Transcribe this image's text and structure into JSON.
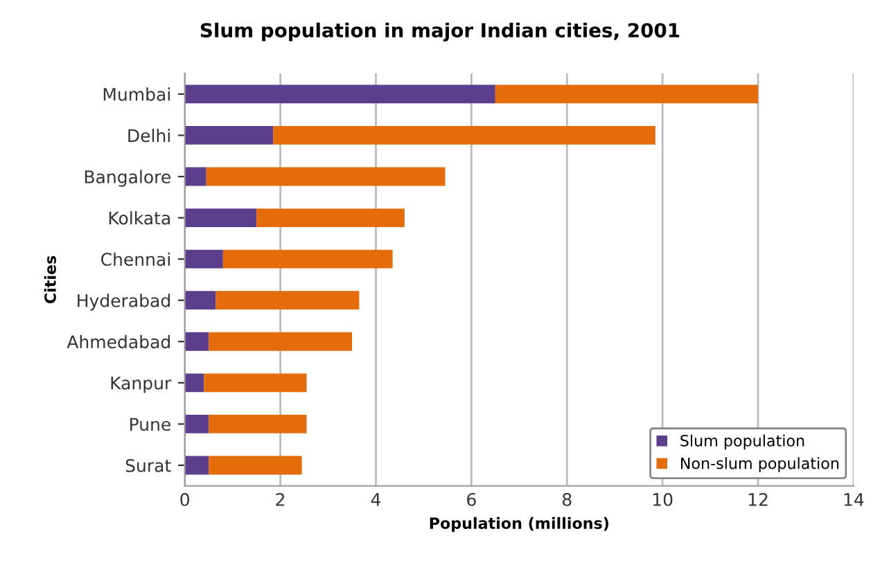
{
  "chart_data": {
    "type": "bar",
    "orientation": "horizontal",
    "stacked": true,
    "title": "Slum population in major Indian cities, 2001",
    "xlabel": "Population (millions)",
    "ylabel": "Cities",
    "categories": [
      "Mumbai",
      "Delhi",
      "Bangalore",
      "Kolkata",
      "Chennai",
      "Hyderabad",
      "Ahmedabad",
      "Kanpur",
      "Pune",
      "Surat"
    ],
    "series": [
      {
        "name": "Slum population",
        "color": "#5b3f8c",
        "values": [
          6.5,
          1.85,
          0.45,
          1.5,
          0.8,
          0.65,
          0.5,
          0.4,
          0.5,
          0.5
        ]
      },
      {
        "name": "Non-slum population",
        "color": "#e46c0a",
        "values": [
          5.5,
          8.0,
          5.0,
          3.1,
          3.55,
          3.0,
          3.0,
          2.15,
          2.05,
          1.95
        ]
      }
    ],
    "xlim": [
      0,
      14
    ],
    "xticks": [
      0,
      2,
      4,
      6,
      8,
      10,
      12,
      14
    ],
    "grid": "x",
    "legend": "bottom right"
  }
}
